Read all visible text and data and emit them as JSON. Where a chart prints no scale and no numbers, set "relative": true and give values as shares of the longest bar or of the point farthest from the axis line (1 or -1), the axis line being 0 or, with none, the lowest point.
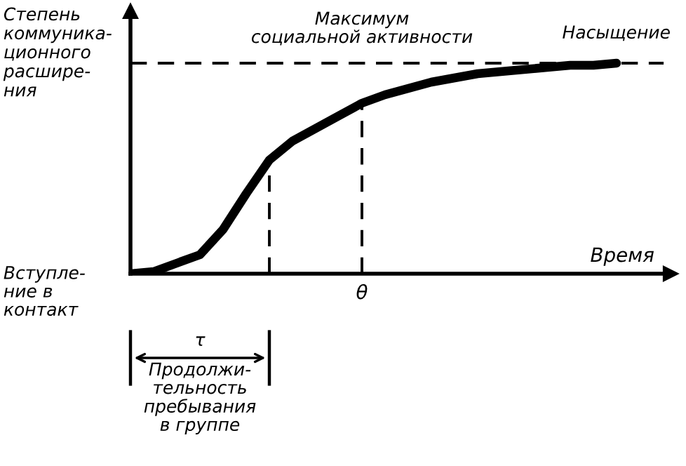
{
  "chart_data": {
    "type": "line",
    "relative": true,
    "ylabel": "Степень\nкоммуника-\nционного\nрасшире-\nния",
    "xlabel": "Время",
    "categories": [
      null,
      null,
      null,
      null,
      null,
      null,
      null,
      null,
      null,
      null,
      null,
      null,
      null,
      null,
      null,
      null,
      null,
      null,
      null,
      null,
      null,
      null
    ],
    "series": [
      {
        "color": "#000000",
        "values": [
          0,
          0.01,
          0.05,
          0.09,
          0.21,
          0.38,
          0.54,
          0.63,
          0.69,
          0.75,
          0.81,
          0.85,
          0.88,
          0.91,
          0.93,
          0.95,
          0.96,
          0.97,
          0.98,
          0.99,
          0.99,
          1
        ]
      }
    ],
    "ref_lines": [
      {
        "axis": "y",
        "value": 1,
        "label": "Насыщение",
        "color": "#000000",
        "line_style": "dashed"
      }
    ],
    "annotations": [
      "Максимум\nсоциальной активности",
      "Вступле-\nние в\nконтакт",
      "τ",
      "Продолжи-\nтельность\nпребывания\nв группе",
      "θ"
    ],
    "legend": false,
    "marker": "none",
    "line_style": "solid"
  }
}
